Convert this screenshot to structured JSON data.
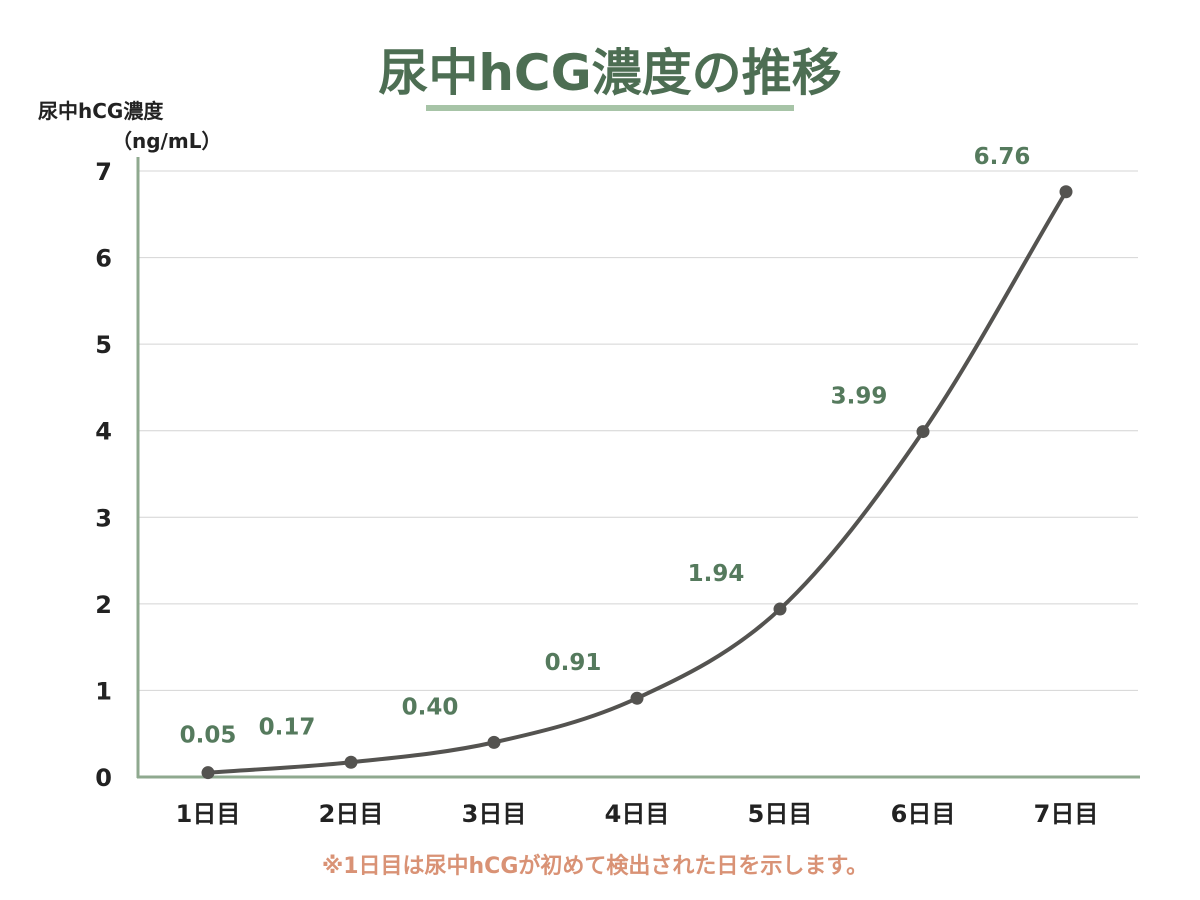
{
  "colors": {
    "title": "#4d6e53",
    "title_underline": "#a7c4a7",
    "axis": "#8fa98f",
    "grid": "#d4d4d4",
    "line": "#545350",
    "point": "#545350",
    "data_label": "#557a5d",
    "tick_label": "#222222",
    "note": "#d99275"
  },
  "chart_data": {
    "type": "line",
    "title": "尿中hCG濃度の推移",
    "ylabel_line1": "尿中hCG濃度",
    "ylabel_line2": "（ng/mL）",
    "xlabel": "",
    "categories": [
      "1日目",
      "2日目",
      "3日目",
      "4日目",
      "5日目",
      "6日目",
      "7日目"
    ],
    "values": [
      0.05,
      0.17,
      0.4,
      0.91,
      1.94,
      3.99,
      6.76
    ],
    "data_labels": [
      "0.05",
      "0.17",
      "0.40",
      "0.91",
      "1.94",
      "3.99",
      "6.76"
    ],
    "ylim": [
      0,
      7
    ],
    "yticks": [
      0,
      1,
      2,
      3,
      4,
      5,
      6,
      7
    ],
    "grid": true,
    "smooth": true,
    "legend": "none"
  },
  "note": "※1日目は尿中hCGが初めて検出された日を示します。"
}
